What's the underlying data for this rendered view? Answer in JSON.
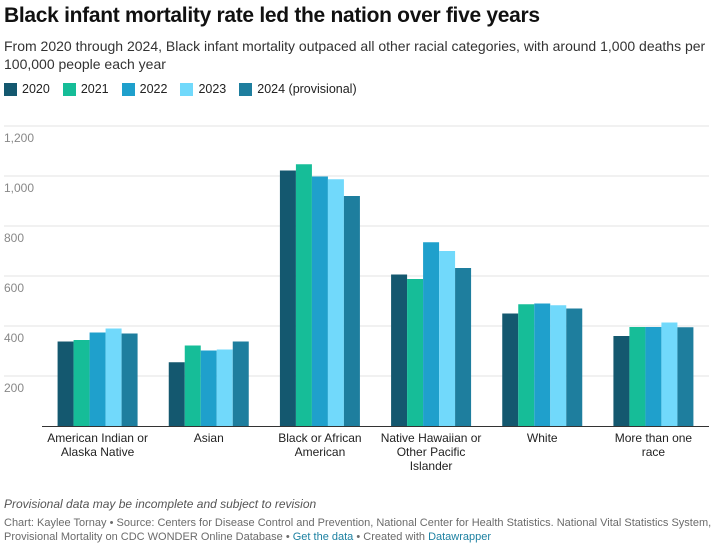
{
  "title": "Black infant mortality rate led the nation over five years",
  "subtitle": "From 2020 through 2024, Black infant mortality outpaced all other racial categories, with around 1,000 deaths per 100,000 people each year",
  "notes": "Provisional data may be incomplete and subject to revision",
  "credits": {
    "chart_prefix": "Chart: ",
    "author": "Kaylee Tornay",
    "source_prefix": " • Source: ",
    "source": "Centers for Disease Control and Prevention, National Center for Health Statistics. National Vital Statistics System, Provisional Mortality on CDC WONDER Online Database",
    "sep1": " • ",
    "get_data": "Get the data",
    "sep2": " • Created with ",
    "tool": "Datawrapper"
  },
  "chart_data": {
    "type": "bar",
    "title": "Black infant mortality rate led the nation over five years",
    "xlabel": "",
    "ylabel": "",
    "ylim": [
      0,
      1200
    ],
    "yticks": [
      200,
      400,
      600,
      800,
      1000,
      1200
    ],
    "ytick_labels": [
      "200",
      "400",
      "600",
      "800",
      "1,000",
      "1,200"
    ],
    "grid": true,
    "legend_position": "top-left",
    "categories": [
      [
        "American Indian or",
        "Alaska Native"
      ],
      [
        "Asian"
      ],
      [
        "Black or African",
        "American"
      ],
      [
        "Native Hawaiian or",
        "Other Pacific",
        "Islander"
      ],
      [
        "White"
      ],
      [
        "More than one",
        "race"
      ]
    ],
    "series": [
      {
        "name": "2020",
        "color": "#14586f",
        "values": [
          338,
          255,
          1022,
          606,
          450,
          360
        ]
      },
      {
        "name": "2021",
        "color": "#16bd98",
        "values": [
          344,
          322,
          1047,
          588,
          487,
          396
        ]
      },
      {
        "name": "2022",
        "color": "#1fa0cc",
        "values": [
          374,
          302,
          998,
          735,
          490,
          396
        ]
      },
      {
        "name": "2023",
        "color": "#71d9fb",
        "values": [
          390,
          306,
          987,
          700,
          483,
          414
        ]
      },
      {
        "name": "2024 (provisional)",
        "color": "#1e7e9e",
        "values": [
          370,
          338,
          920,
          632,
          470,
          395
        ]
      }
    ]
  }
}
